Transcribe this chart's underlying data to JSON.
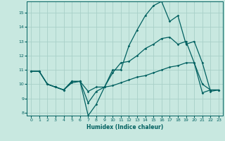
{
  "xlabel": "Humidex (Indice chaleur)",
  "background_color": "#c8e8e0",
  "line_color": "#006060",
  "grid_color": "#a8d0c8",
  "xlim": [
    -0.5,
    23.5
  ],
  "ylim": [
    7.8,
    15.8
  ],
  "xticks": [
    0,
    1,
    2,
    3,
    4,
    5,
    6,
    7,
    8,
    9,
    10,
    11,
    12,
    13,
    14,
    15,
    16,
    17,
    18,
    19,
    20,
    21,
    22,
    23
  ],
  "yticks": [
    8,
    9,
    10,
    11,
    12,
    13,
    14,
    15
  ],
  "line1_x": [
    0,
    1,
    2,
    3,
    4,
    5,
    6,
    7,
    8,
    9,
    10,
    11,
    12,
    13,
    14,
    15,
    16,
    17,
    18,
    19,
    20,
    21,
    22,
    23
  ],
  "line1_y": [
    10.9,
    10.9,
    10.0,
    9.8,
    9.6,
    10.2,
    10.2,
    7.8,
    8.6,
    9.8,
    11.0,
    11.0,
    12.7,
    13.8,
    14.8,
    15.5,
    15.8,
    14.4,
    14.8,
    12.8,
    13.0,
    11.5,
    9.5,
    9.6
  ],
  "line2_x": [
    0,
    1,
    2,
    3,
    4,
    5,
    6,
    7,
    8,
    9,
    10,
    11,
    12,
    13,
    14,
    15,
    16,
    17,
    18,
    19,
    20,
    21,
    22,
    23
  ],
  "line2_y": [
    10.9,
    10.9,
    10.0,
    9.8,
    9.6,
    10.2,
    10.2,
    8.7,
    9.5,
    9.8,
    10.8,
    11.5,
    11.6,
    12.0,
    12.5,
    12.8,
    13.2,
    13.3,
    12.8,
    13.0,
    11.5,
    9.4,
    9.6,
    9.6
  ],
  "line3_x": [
    0,
    1,
    2,
    3,
    4,
    5,
    6,
    7,
    8,
    9,
    10,
    11,
    12,
    13,
    14,
    15,
    16,
    17,
    18,
    19,
    20,
    21,
    22,
    23
  ],
  "line3_y": [
    10.9,
    10.9,
    10.0,
    9.8,
    9.6,
    10.1,
    10.2,
    9.5,
    9.8,
    9.8,
    9.9,
    10.1,
    10.3,
    10.5,
    10.6,
    10.8,
    11.0,
    11.2,
    11.3,
    11.5,
    11.5,
    10.0,
    9.6,
    9.6
  ]
}
